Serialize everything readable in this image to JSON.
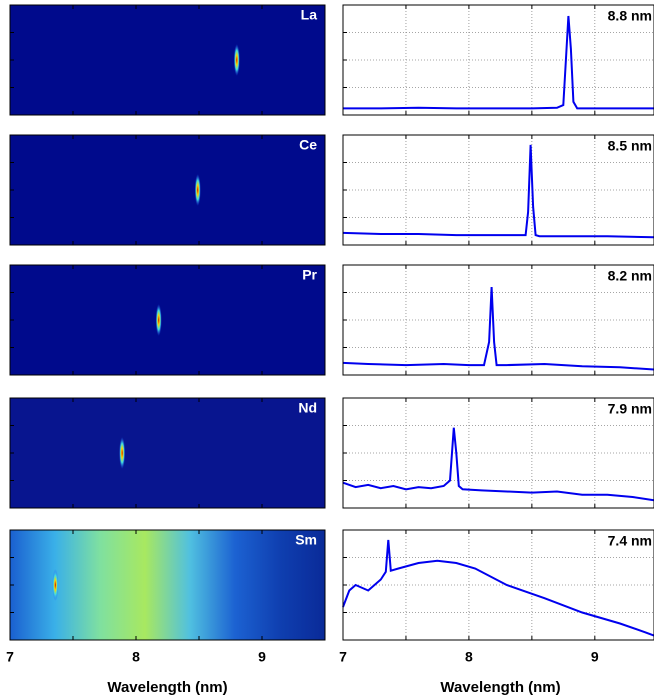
{
  "chart_data": [
    {
      "type": "image",
      "label": "La",
      "xlim": [
        7,
        9.5
      ],
      "ylim": [
        0,
        1
      ],
      "xticks": [
        7,
        8,
        9
      ],
      "minor_xticks": [
        7.5,
        8.5
      ],
      "yticks": [
        0.25,
        0.5,
        0.75
      ],
      "peak": 8.8,
      "colors": [
        "#000a8c"
      ]
    },
    {
      "type": "line",
      "annotation": "8.8 nm",
      "xlim": [
        7,
        9.47
      ],
      "ylim": [
        0,
        1
      ],
      "xticks": [
        7,
        8,
        9
      ],
      "minor_xticks": [
        7.5,
        8.5
      ],
      "yticks": [
        0.25,
        0.5,
        0.75
      ],
      "grid": true,
      "x": [
        7,
        7.3,
        7.6,
        7.9,
        8.2,
        8.5,
        8.7,
        8.75,
        8.77,
        8.79,
        8.81,
        8.83,
        8.86,
        9.0,
        9.2,
        9.47
      ],
      "series": [
        {
          "color": "#0000ee",
          "values": [
            0.06,
            0.06,
            0.065,
            0.06,
            0.06,
            0.06,
            0.065,
            0.09,
            0.5,
            0.9,
            0.6,
            0.12,
            0.06,
            0.06,
            0.06,
            0.06
          ]
        }
      ]
    },
    {
      "type": "image",
      "label": "Ce",
      "xlim": [
        7,
        9.5
      ],
      "ylim": [
        0,
        1
      ],
      "xticks": [
        7,
        8,
        9
      ],
      "minor_xticks": [
        7.5,
        8.5
      ],
      "yticks": [
        0.25,
        0.5,
        0.75
      ],
      "peak": 8.49,
      "colors": [
        "#000a8c"
      ]
    },
    {
      "type": "line",
      "annotation": "8.5 nm",
      "xlim": [
        7,
        9.47
      ],
      "ylim": [
        0,
        1
      ],
      "xticks": [
        7,
        8,
        9
      ],
      "minor_xticks": [
        7.5,
        8.5
      ],
      "yticks": [
        0.25,
        0.5,
        0.75
      ],
      "grid": true,
      "x": [
        7,
        7.3,
        7.6,
        7.9,
        8.2,
        8.4,
        8.45,
        8.47,
        8.49,
        8.51,
        8.53,
        8.56,
        8.8,
        9.1,
        9.47
      ],
      "series": [
        {
          "color": "#0000ee",
          "values": [
            0.11,
            0.1,
            0.1,
            0.09,
            0.09,
            0.09,
            0.09,
            0.3,
            0.91,
            0.35,
            0.09,
            0.08,
            0.08,
            0.08,
            0.07
          ]
        }
      ]
    },
    {
      "type": "image",
      "label": "Pr",
      "xlim": [
        7,
        9.5
      ],
      "ylim": [
        0,
        1
      ],
      "xticks": [
        7,
        8,
        9
      ],
      "minor_xticks": [
        7.5,
        8.5
      ],
      "yticks": [
        0.25,
        0.5,
        0.75
      ],
      "peak": 8.18,
      "colors": [
        "#000a8c"
      ]
    },
    {
      "type": "line",
      "annotation": "8.2 nm",
      "xlim": [
        7,
        9.47
      ],
      "ylim": [
        0,
        1
      ],
      "xticks": [
        7,
        8,
        9
      ],
      "minor_xticks": [
        7.5,
        8.5
      ],
      "yticks": [
        0.25,
        0.5,
        0.75
      ],
      "grid": true,
      "x": [
        7,
        7.2,
        7.5,
        7.8,
        8.0,
        8.12,
        8.16,
        8.18,
        8.2,
        8.22,
        8.3,
        8.6,
        8.9,
        9.2,
        9.47
      ],
      "series": [
        {
          "color": "#0000ee",
          "values": [
            0.11,
            0.1,
            0.09,
            0.1,
            0.09,
            0.09,
            0.3,
            0.8,
            0.3,
            0.09,
            0.09,
            0.1,
            0.08,
            0.07,
            0.05
          ]
        }
      ]
    },
    {
      "type": "image",
      "label": "Nd",
      "xlim": [
        7,
        9.5
      ],
      "ylim": [
        0,
        1
      ],
      "xticks": [
        7,
        8,
        9
      ],
      "minor_xticks": [
        7.5,
        8.5
      ],
      "yticks": [
        0.25,
        0.5,
        0.75
      ],
      "peak": 7.89,
      "colors": [
        "#08158f"
      ]
    },
    {
      "type": "line",
      "annotation": "7.9 nm",
      "xlim": [
        7,
        9.47
      ],
      "ylim": [
        0,
        1
      ],
      "xticks": [
        7,
        8,
        9
      ],
      "minor_xticks": [
        7.5,
        8.5
      ],
      "yticks": [
        0.25,
        0.5,
        0.75
      ],
      "grid": true,
      "x": [
        7,
        7.1,
        7.2,
        7.3,
        7.4,
        7.5,
        7.6,
        7.7,
        7.8,
        7.85,
        7.88,
        7.9,
        7.92,
        7.95,
        8.1,
        8.3,
        8.5,
        8.7,
        8.9,
        9.1,
        9.3,
        9.47
      ],
      "series": [
        {
          "color": "#0000ee",
          "values": [
            0.23,
            0.19,
            0.21,
            0.18,
            0.2,
            0.17,
            0.19,
            0.18,
            0.2,
            0.25,
            0.73,
            0.5,
            0.2,
            0.17,
            0.16,
            0.15,
            0.14,
            0.15,
            0.12,
            0.12,
            0.1,
            0.07
          ]
        }
      ]
    },
    {
      "type": "image",
      "label": "Sm",
      "xlim": [
        7,
        9.5
      ],
      "ylim": [
        0,
        1
      ],
      "xticks": [
        7,
        8,
        9
      ],
      "minor_xticks": [
        7.5,
        8.5
      ],
      "yticks": [
        0.25,
        0.5,
        0.75
      ],
      "peak": 7.36,
      "colors": [
        "#1a5fd0",
        "#3ab0e8",
        "#7fe0a0",
        "#a8e860",
        "#50c0e0",
        "#1c62d2",
        "#0f3fb0",
        "#0a2a98"
      ],
      "tick_labels": true,
      "xlabel": "Wavelength (nm)"
    },
    {
      "type": "line",
      "annotation": "7.4 nm",
      "xlim": [
        7,
        9.47
      ],
      "ylim": [
        0,
        1
      ],
      "xticks": [
        7,
        8,
        9
      ],
      "minor_xticks": [
        7.5,
        8.5
      ],
      "yticks": [
        0.25,
        0.5,
        0.75
      ],
      "grid": true,
      "tick_labels": true,
      "xlabel": "Wavelength (nm)",
      "x": [
        7,
        7.05,
        7.1,
        7.2,
        7.3,
        7.34,
        7.36,
        7.38,
        7.44,
        7.6,
        7.75,
        7.9,
        8.05,
        8.3,
        8.6,
        8.9,
        9.2,
        9.4,
        9.47
      ],
      "series": [
        {
          "color": "#0000ee",
          "values": [
            0.3,
            0.45,
            0.5,
            0.45,
            0.55,
            0.62,
            0.91,
            0.63,
            0.65,
            0.7,
            0.72,
            0.7,
            0.65,
            0.5,
            0.38,
            0.25,
            0.15,
            0.07,
            0.04
          ]
        }
      ]
    }
  ]
}
